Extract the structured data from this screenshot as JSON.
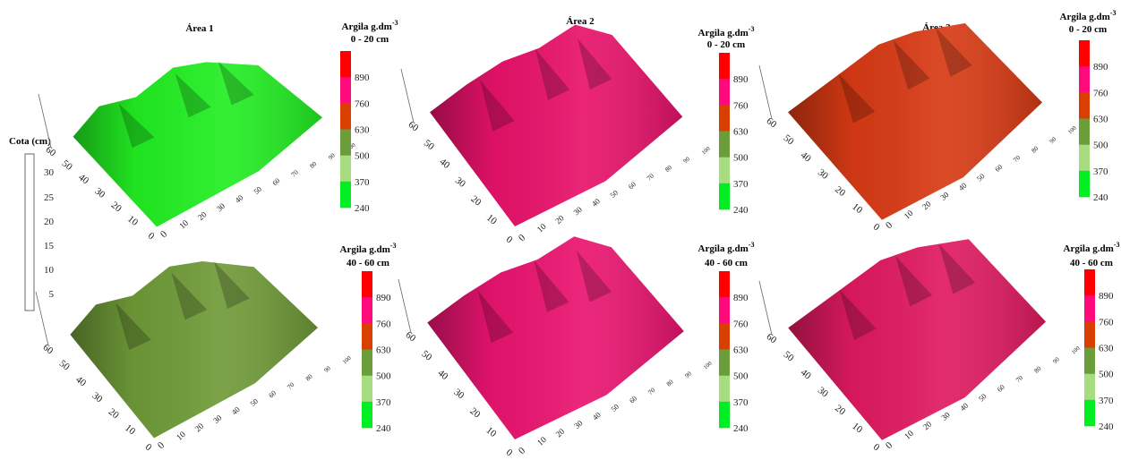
{
  "figure": {
    "areas": [
      "Área 1",
      "Área 2",
      "Área 3"
    ],
    "cota_scale": {
      "title": "Cota (cm)",
      "ticks": [
        30,
        25,
        20,
        15,
        10,
        5
      ]
    },
    "colorbar": {
      "title": "Argila g.dm",
      "title_sup": "-3",
      "labels": [
        890,
        760,
        630,
        500,
        370,
        240
      ],
      "colors": [
        "#ff0000",
        "#ff0a7a",
        "#d94000",
        "#6b9e3a",
        "#a8dc80",
        "#00ee22"
      ]
    },
    "depths": [
      "0 - 20 cm",
      "40 - 60 cm"
    ],
    "panel_axes": {
      "y_ticks": [
        "0",
        "10",
        "20",
        "30",
        "40",
        "50",
        "60"
      ],
      "x_ticks": [
        "0",
        "10",
        "20",
        "30",
        "40",
        "50",
        "60",
        "70",
        "80",
        "90",
        "100"
      ]
    }
  },
  "chart_data": [
    {
      "type": "surface",
      "area": "Área 1",
      "depth": "0 - 20 cm",
      "dominant_class": "240 - 370",
      "fill": "#22ee22",
      "xlim": [
        0,
        100
      ],
      "ylim": [
        0,
        60
      ]
    },
    {
      "type": "surface",
      "area": "Área 2",
      "depth": "0 - 20 cm",
      "dominant_class": "760 - 890",
      "fill": "#e8126a",
      "xlim": [
        0,
        100
      ],
      "ylim": [
        0,
        60
      ]
    },
    {
      "type": "surface",
      "area": "Área 3",
      "depth": "0 - 20 cm",
      "dominant_class": "630 - 760",
      "fill": "#d83a14",
      "xlim": [
        0,
        100
      ],
      "ylim": [
        0,
        60
      ]
    },
    {
      "type": "surface",
      "area": "Área 1",
      "depth": "40 - 60 cm",
      "dominant_class": "500 - 630",
      "fill": "#6f9a38",
      "xlim": [
        0,
        100
      ],
      "ylim": [
        0,
        60
      ]
    },
    {
      "type": "surface",
      "area": "Área 2",
      "depth": "40 - 60 cm",
      "dominant_class": "760 - 890",
      "fill": "#ea1470",
      "xlim": [
        0,
        100
      ],
      "ylim": [
        0,
        60
      ]
    },
    {
      "type": "surface",
      "area": "Área 3",
      "depth": "40 - 60 cm",
      "dominant_class": "760 - 890",
      "fill": "#e01a60",
      "xlim": [
        0,
        100
      ],
      "ylim": [
        0,
        60
      ]
    }
  ]
}
